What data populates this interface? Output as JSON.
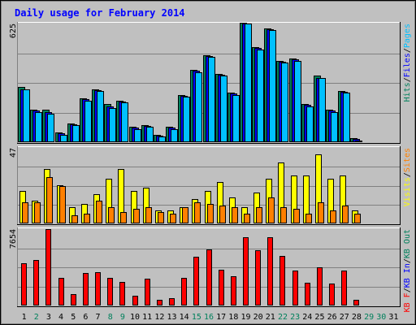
{
  "chart_data": [
    {
      "type": "bar",
      "title": "Daily usage for February 2014",
      "categories": [
        "1",
        "2",
        "3",
        "4",
        "5",
        "6",
        "7",
        "8",
        "9",
        "10",
        "11",
        "12",
        "13",
        "14",
        "15",
        "16",
        "17",
        "18",
        "19",
        "20",
        "21",
        "22",
        "23",
        "24",
        "25",
        "26",
        "27",
        "28",
        "29",
        "30",
        "31"
      ],
      "weekend_days": [
        "2",
        "8",
        "9",
        "15",
        "16",
        "22",
        "23",
        "29",
        "30"
      ],
      "panels": [
        {
          "id": "pages-files-hits",
          "ymax_label": "625",
          "ylim": [
            0,
            625
          ],
          "legend": [
            {
              "name": "Hits",
              "color": "#00805c"
            },
            {
              "name": "Files",
              "color": "#0000ff"
            },
            {
              "name": "Pages",
              "color": "#00c0ff"
            }
          ],
          "legend_separator": "/",
          "series": [
            {
              "name": "Hits",
              "color": "#00805c",
              "values": [
                290,
                170,
                170,
                50,
                100,
                230,
                280,
                200,
                220,
                80,
                90,
                40,
                80,
                250,
                380,
                460,
                360,
                260,
                630,
                500,
                600,
                430,
                440,
                200,
                350,
                170,
                270,
                20,
                0,
                0,
                0
              ]
            },
            {
              "name": "Files",
              "color": "#0000ff",
              "values": [
                280,
                165,
                160,
                45,
                95,
                225,
                275,
                190,
                215,
                75,
                85,
                35,
                75,
                245,
                375,
                455,
                355,
                255,
                625,
                495,
                595,
                425,
                435,
                195,
                340,
                165,
                265,
                15,
                0,
                0,
                0
              ]
            },
            {
              "name": "Pages",
              "color": "#00c0ff",
              "values": [
                280,
                160,
                150,
                40,
                90,
                220,
                270,
                180,
                210,
                70,
                80,
                30,
                70,
                240,
                370,
                450,
                350,
                250,
                625,
                490,
                590,
                420,
                430,
                190,
                340,
                160,
                260,
                10,
                0,
                0,
                0
              ]
            }
          ]
        },
        {
          "id": "visits-sites",
          "ymax_label": "47",
          "ylim": [
            0,
            47
          ],
          "legend": [
            {
              "name": "Visits",
              "color": "#ffff00"
            },
            {
              "name": "Sites",
              "color": "#ff8000"
            }
          ],
          "legend_separator": "/",
          "series": [
            {
              "name": "Visits",
              "color": "#ffff00",
              "values": [
                20,
                14,
                34,
                24,
                10,
                12,
                18,
                28,
                34,
                20,
                22,
                8,
                8,
                10,
                15,
                20,
                26,
                16,
                10,
                19,
                28,
                38,
                30,
                30,
                43,
                28,
                30,
                8,
                0,
                0,
                0
              ]
            },
            {
              "name": "Sites",
              "color": "#ff8000",
              "values": [
                13,
                13,
                29,
                23,
                5,
                6,
                14,
                10,
                7,
                9,
                10,
                7,
                6,
                10,
                13,
                12,
                11,
                10,
                6,
                10,
                16,
                10,
                9,
                6,
                13,
                8,
                11,
                6,
                0,
                0,
                0
              ]
            }
          ]
        },
        {
          "id": "kbf-kbin-kbout",
          "ymax_label": "7654",
          "ylim": [
            0,
            7654
          ],
          "legend": [
            {
              "name": "KB F",
              "color": "#ff0000"
            },
            {
              "name": "KB In",
              "color": "#0000ff"
            },
            {
              "name": "KB Out",
              "color": "#00805c"
            }
          ],
          "legend_separator": "/",
          "series": [
            {
              "name": "KB F",
              "color": "#ff0000",
              "values": [
                4250,
                4550,
                7654,
                2750,
                1150,
                3250,
                3300,
                2750,
                2400,
                950,
                2700,
                550,
                750,
                2800,
                4850,
                5650,
                3600,
                2950,
                6850,
                5500,
                6800,
                5000,
                3500,
                2250,
                3800,
                2200,
                3500,
                550,
                0,
                0,
                0
              ]
            }
          ]
        }
      ]
    }
  ]
}
